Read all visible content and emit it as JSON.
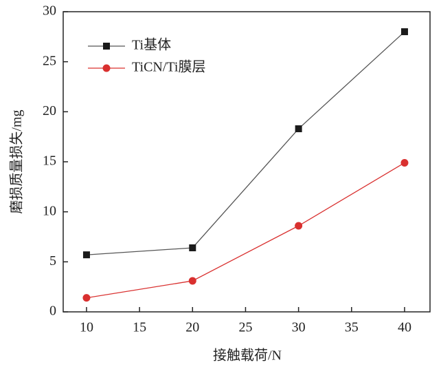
{
  "chart_data": {
    "type": "line",
    "x": [
      10,
      20,
      30,
      40
    ],
    "series": [
      {
        "name": "Ti基体",
        "color": "#1a1a1a",
        "line_color": "#555555",
        "marker": "square",
        "values": [
          5.7,
          6.4,
          18.3,
          28.0
        ]
      },
      {
        "name": "TiCN/Ti膜层",
        "color": "#d9302f",
        "line_color": "#d9302f",
        "marker": "circle",
        "values": [
          1.4,
          3.1,
          8.6,
          14.9
        ]
      }
    ],
    "xlabel": "接触载荷/N",
    "ylabel": "磨损质量损失/mg",
    "xlim": [
      7.8,
      42.4
    ],
    "ylim": [
      0,
      30
    ],
    "xticks": [
      10,
      15,
      20,
      25,
      30,
      35,
      40
    ],
    "yticks": [
      0,
      5,
      10,
      15,
      20,
      25,
      30
    ],
    "legend": "upper-left"
  }
}
